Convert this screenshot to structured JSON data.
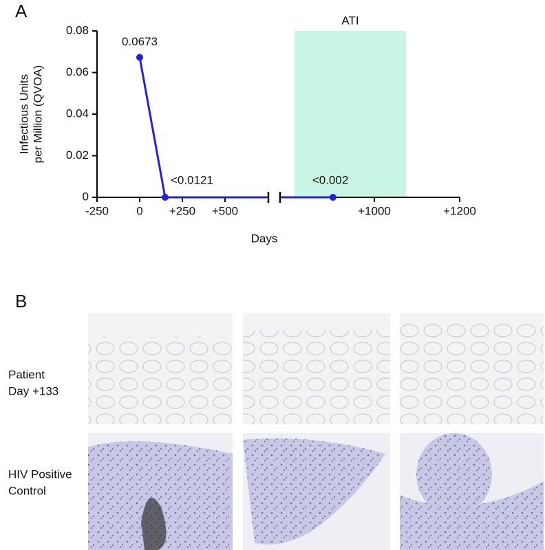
{
  "panels": [
    "A",
    "B"
  ],
  "chart_data": {
    "type": "line",
    "ylabel": [
      "Infectious Units",
      "per Million (QVOA)"
    ],
    "xlabel": "Days",
    "x": [
      0,
      149,
      903
    ],
    "series": [
      {
        "color": "#2222dd",
        "values": [
          0.0673,
          0,
          0
        ]
      }
    ],
    "annotations": [
      "<0.0121",
      "<0.002"
    ],
    "ylim": [
      0,
      0.08
    ],
    "yticks": [
      0,
      0.02,
      0.04,
      0.06,
      0.08
    ],
    "x_segments": [
      {
        "xlim": [
          -250,
          754
        ],
        "xticks": [
          -250,
          0,
          {
            "value": 250,
            "label": "+250"
          },
          {
            "value": 500,
            "label": "+500"
          }
        ]
      },
      {
        "xlim": [
          779,
          1200
        ],
        "xticks": [
          {
            "value": 1000,
            "label": "+1000"
          },
          {
            "value": 1200,
            "label": "+1200"
          }
        ]
      }
    ],
    "region": {
      "label": "ATI",
      "x": [
        813,
        1074
      ],
      "color": "#c9f5e4"
    }
  },
  "images": {
    "rows": [
      [
        "Patient",
        "Day +133"
      ],
      [
        "HIV Positive",
        "Control"
      ]
    ]
  }
}
